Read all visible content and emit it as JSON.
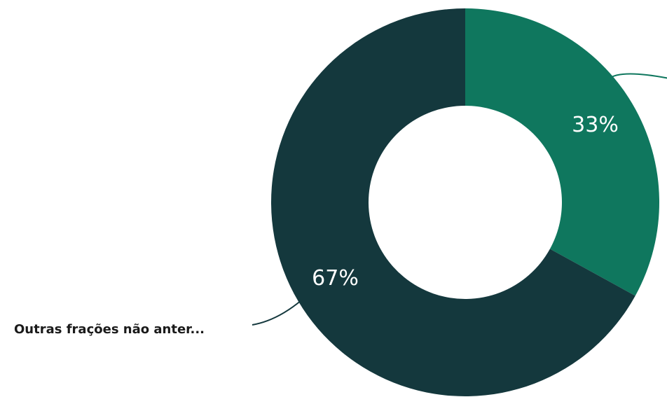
{
  "chart_data": {
    "type": "pie",
    "donut": true,
    "slices": [
      {
        "label": "",
        "value": 33,
        "value_label": "33%",
        "color": "#0f775e"
      },
      {
        "label": "Outras frações não anter...",
        "value": 67,
        "value_label": "67%",
        "color": "#14383d"
      }
    ],
    "legend": "none"
  }
}
